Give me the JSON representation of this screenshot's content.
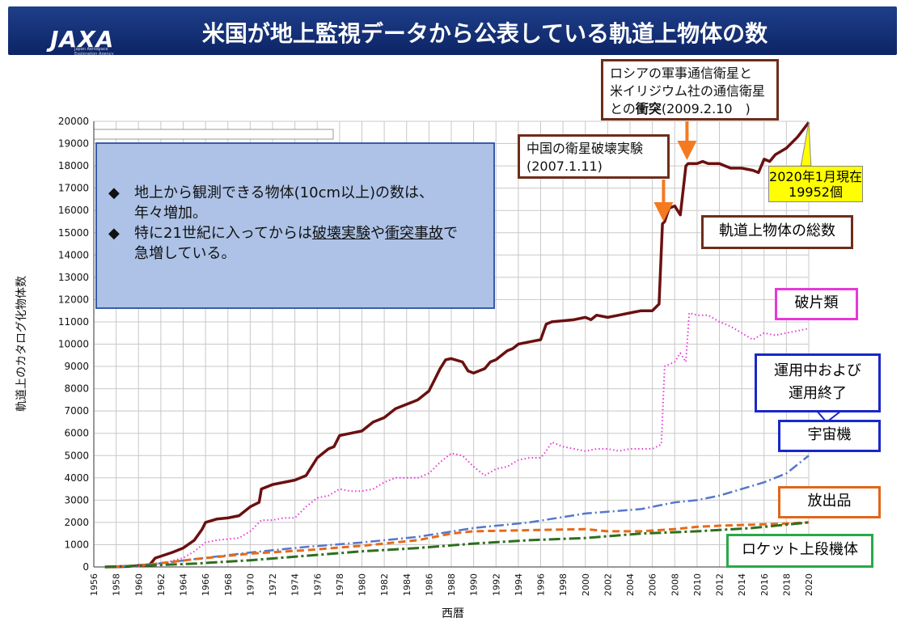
{
  "header": {
    "title": "米国が地上監視データから公表している軌道上物体の数",
    "logo_text": "JAXA",
    "logo_sub": "Japan Aerospace Exploration Agency"
  },
  "colors": {
    "header_bg": "#1e3f8a",
    "total": "#6b1010",
    "debris": "#e838d8",
    "satellites": "#5577cc",
    "mission": "#e66a1a",
    "rocket": "#2e6e1e",
    "arrow": "#f47a20"
  },
  "info": {
    "line1": "地上から観測できる物体(10cm以上)の数は、",
    "line1b": "年々増加。",
    "line2a": "特に21世紀に入ってからは",
    "line2_u1": "破壊実験",
    "line2_mid": "や",
    "line2_u2": "衝突事故",
    "line2_end": "で",
    "line2b": "急増している。",
    "bullet": "◆"
  },
  "callouts": {
    "china_l1": "中国の衛星破壊実験",
    "china_l2": "(2007.1.11)",
    "russia_l1": "ロシアの軍事通信衛星と",
    "russia_l2": "米イリジウム社の通信衛星",
    "russia_l3a": "との",
    "russia_l3b": "衝突",
    "russia_l3c": "(2009.2.10　)",
    "total": "軌道上物体の総数",
    "debris": "破片類",
    "sat_l1": "運用中および",
    "sat_l2": "運用終了",
    "sat_l3": "宇宙機",
    "mission": "放出品",
    "rocket": "ロケット上段機体",
    "now_l1": "2020年1月現在",
    "now_l2": "19952個"
  },
  "chart_data": {
    "type": "line",
    "xlabel": "西暦",
    "ylabel": "軌道上のカタログ化物体数",
    "xlim": [
      1956,
      2020
    ],
    "ylim": [
      0,
      20000
    ],
    "x_ticks": [
      1956,
      1958,
      1960,
      1962,
      1964,
      1966,
      1968,
      1970,
      1972,
      1974,
      1976,
      1978,
      1980,
      1982,
      1984,
      1986,
      1988,
      1990,
      1992,
      1994,
      1996,
      1998,
      2000,
      2002,
      2004,
      2006,
      2008,
      2010,
      2012,
      2014,
      2016,
      2018,
      2020
    ],
    "y_ticks": [
      0,
      1000,
      2000,
      3000,
      4000,
      5000,
      6000,
      7000,
      8000,
      9000,
      10000,
      11000,
      12000,
      13000,
      14000,
      15000,
      16000,
      17000,
      18000,
      19000,
      20000
    ],
    "grid": true,
    "series": [
      {
        "name": "軌道上物体の総数",
        "style": "solid",
        "x": [
          1957,
          1959,
          1961,
          1961.5,
          1963,
          1964,
          1965,
          1965.7,
          1966,
          1967,
          1968,
          1969,
          1970,
          1970.8,
          1971,
          1972,
          1974,
          1975,
          1976,
          1977,
          1977.5,
          1978,
          1979,
          1980,
          1981,
          1982,
          1983,
          1984,
          1985,
          1986,
          1986.5,
          1987,
          1987.5,
          1988,
          1989,
          1989.5,
          1990,
          1991,
          1991.5,
          1992,
          1993,
          1993.5,
          1994,
          1995,
          1996,
          1996.5,
          1997,
          1998,
          1999,
          2000,
          2000.5,
          2001,
          2002,
          2003,
          2004,
          2005,
          2006,
          2006.6,
          2006.9,
          2007.1,
          2007.5,
          2008,
          2008.5,
          2009,
          2009.2,
          2010,
          2010.5,
          2011,
          2012,
          2013,
          2014,
          2015,
          2015.5,
          2016,
          2016.5,
          2017,
          2018,
          2019,
          2020
        ],
        "y": [
          0,
          20,
          100,
          400,
          650,
          850,
          1200,
          1700,
          2000,
          2150,
          2200,
          2300,
          2700,
          2900,
          3500,
          3700,
          3900,
          4100,
          4900,
          5300,
          5400,
          5900,
          6000,
          6100,
          6500,
          6700,
          7100,
          7300,
          7500,
          7900,
          8400,
          8900,
          9300,
          9350,
          9200,
          8800,
          8700,
          8900,
          9200,
          9300,
          9700,
          9800,
          10000,
          10100,
          10200,
          10900,
          11000,
          11050,
          11100,
          11200,
          11100,
          11300,
          11200,
          11300,
          11400,
          11500,
          11500,
          11800,
          15400,
          15500,
          16100,
          16200,
          15800,
          18000,
          18100,
          18100,
          18200,
          18100,
          18100,
          17900,
          17900,
          17800,
          17700,
          18300,
          18200,
          18500,
          18800,
          19300,
          19952
        ]
      },
      {
        "name": "破片類",
        "style": "dotted",
        "x": [
          1957,
          1960,
          1962,
          1964,
          1965,
          1966,
          1967,
          1969,
          1970,
          1971,
          1972,
          1973,
          1974,
          1975,
          1976,
          1977,
          1978,
          1979,
          1980,
          1981,
          1982,
          1983,
          1984,
          1985,
          1986,
          1987,
          1988,
          1989,
          1990,
          1991,
          1992,
          1993,
          1994,
          1995,
          1996,
          1996.5,
          1997,
          1998,
          1999,
          2000,
          2001,
          2002,
          2003,
          2004,
          2005,
          2006,
          2006.8,
          2007.1,
          2008,
          2008.5,
          2009,
          2009.3,
          2010,
          2011,
          2012,
          2013,
          2014,
          2015,
          2016,
          2017,
          2018,
          2019,
          2020
        ],
        "y": [
          0,
          30,
          150,
          400,
          700,
          1100,
          1200,
          1300,
          1600,
          2100,
          2100,
          2200,
          2200,
          2700,
          3100,
          3200,
          3500,
          3400,
          3400,
          3500,
          3800,
          4000,
          4000,
          4000,
          4200,
          4700,
          5100,
          5000,
          4500,
          4100,
          4400,
          4500,
          4800,
          4900,
          4900,
          5200,
          5600,
          5400,
          5300,
          5200,
          5300,
          5300,
          5200,
          5300,
          5300,
          5300,
          5500,
          9000,
          9200,
          9600,
          9200,
          11400,
          11300,
          11300,
          11000,
          10800,
          10500,
          10200,
          10500,
          10400,
          10500,
          10600,
          10700
        ]
      },
      {
        "name": "運用中および運用終了 宇宙機",
        "style": "dashdot",
        "x": [
          1957,
          1960,
          1965,
          1970,
          1975,
          1980,
          1985,
          1990,
          1995,
          2000,
          2005,
          2008,
          2010,
          2012,
          2014,
          2016,
          2017,
          2018,
          2019,
          2020
        ],
        "y": [
          0,
          50,
          350,
          650,
          900,
          1100,
          1350,
          1750,
          2000,
          2400,
          2600,
          2900,
          3000,
          3200,
          3500,
          3800,
          4000,
          4200,
          4600,
          5000
        ]
      },
      {
        "name": "放出品",
        "style": "dashed",
        "x": [
          1957,
          1960,
          1965,
          1970,
          1975,
          1980,
          1985,
          1988,
          1990,
          1995,
          2000,
          2002,
          2005,
          2008,
          2010,
          2012,
          2015,
          2018,
          2020
        ],
        "y": [
          0,
          50,
          350,
          600,
          750,
          950,
          1200,
          1500,
          1600,
          1650,
          1700,
          1600,
          1600,
          1700,
          1800,
          1850,
          1900,
          1950,
          2000
        ]
      },
      {
        "name": "ロケット上段機体",
        "style": "longdash",
        "x": [
          1957,
          1960,
          1965,
          1970,
          1975,
          1980,
          1985,
          1990,
          1995,
          2000,
          2005,
          2010,
          2015,
          2020
        ],
        "y": [
          0,
          50,
          150,
          300,
          500,
          700,
          850,
          1050,
          1200,
          1300,
          1500,
          1600,
          1750,
          2000
        ]
      }
    ]
  }
}
